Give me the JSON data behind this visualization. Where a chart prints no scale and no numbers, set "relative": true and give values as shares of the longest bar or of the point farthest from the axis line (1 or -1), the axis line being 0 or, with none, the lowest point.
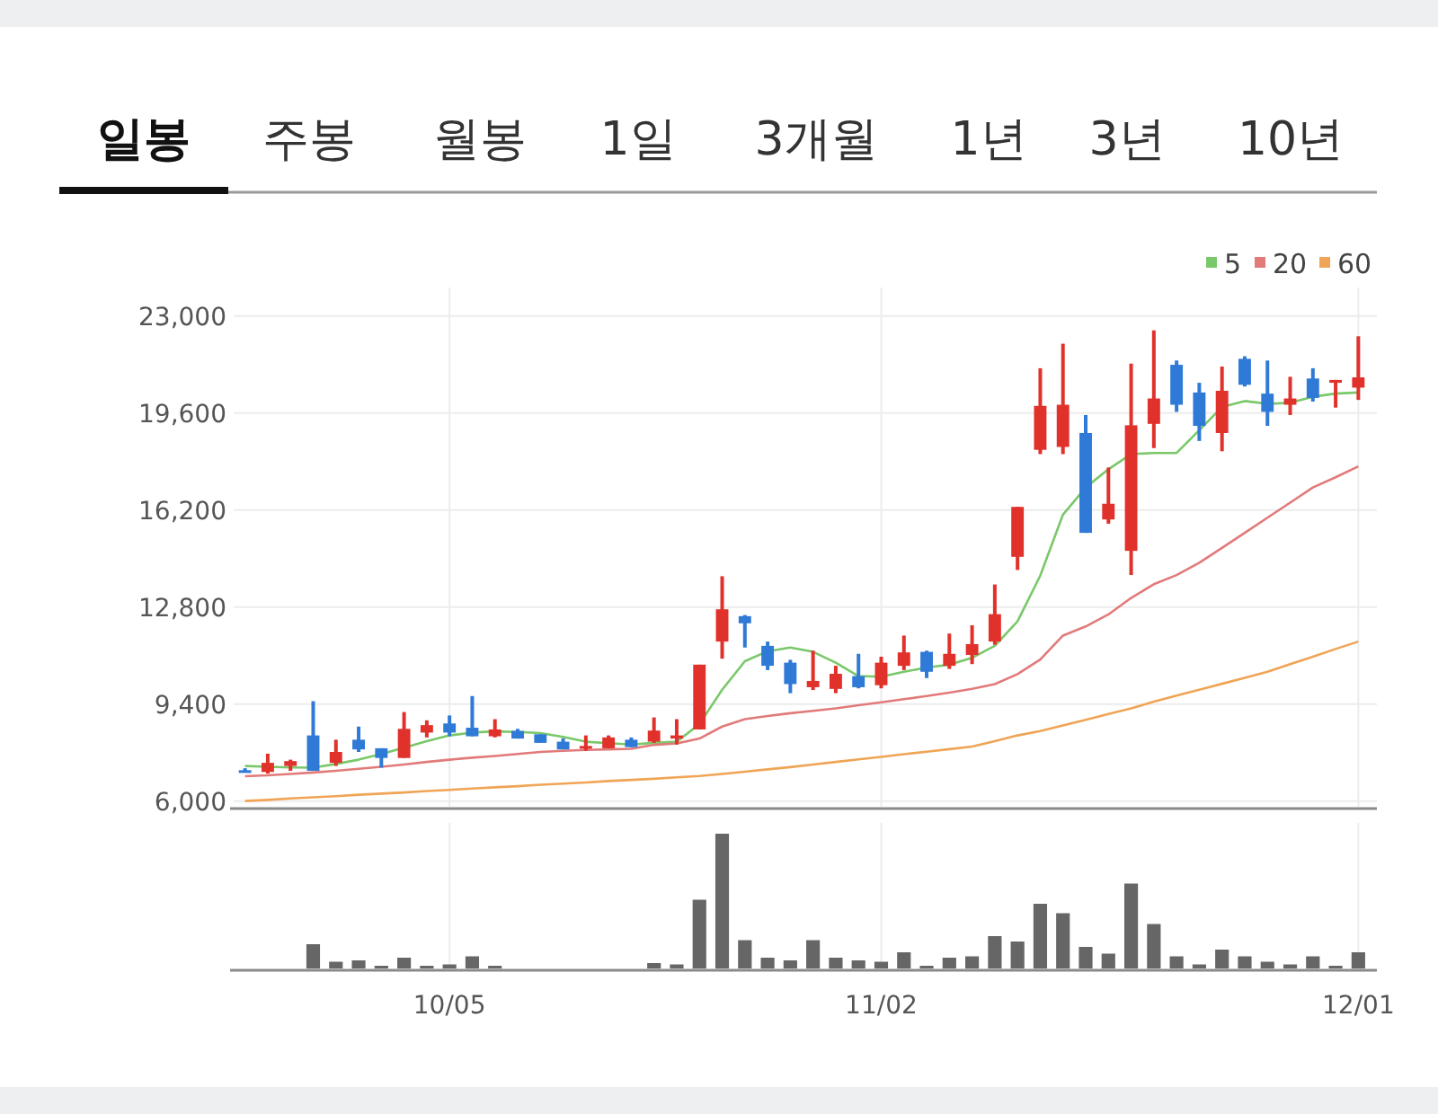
{
  "chart_data": [
    {
      "type": "candlestick",
      "annotations": [
        "일봉",
        "주봉",
        "월봉",
        "1일",
        "3개월",
        "1년",
        "3년",
        "10년"
      ],
      "categories": [
        null,
        null,
        null,
        null,
        null,
        null,
        null,
        null,
        null,
        null,
        null,
        null,
        null,
        null,
        null,
        null,
        null,
        null,
        null,
        null,
        null,
        null,
        null,
        null,
        null,
        null,
        null,
        null,
        null,
        null,
        null,
        null,
        null,
        null,
        null,
        null,
        null,
        null,
        null,
        null,
        null,
        null,
        null,
        null,
        null,
        null,
        null,
        null,
        null,
        null
      ],
      "ohlc": [
        [
          7080,
          7150,
          7000,
          7000
        ],
        [
          7020,
          7660,
          6960,
          7340
        ],
        [
          7230,
          7450,
          7060,
          7400
        ],
        [
          8300,
          9500,
          7060,
          7060
        ],
        [
          7340,
          8150,
          7230,
          7720
        ],
        [
          8150,
          8610,
          7720,
          7810
        ],
        [
          7850,
          7850,
          7170,
          7510
        ],
        [
          7510,
          9120,
          7510,
          8530
        ],
        [
          8400,
          8830,
          8230,
          8660
        ],
        [
          8720,
          9000,
          8270,
          8400
        ],
        [
          8570,
          9680,
          8270,
          8270
        ],
        [
          8270,
          8870,
          8230,
          8510
        ],
        [
          8460,
          8530,
          8190,
          8190
        ],
        [
          8340,
          8340,
          8040,
          8040
        ],
        [
          8080,
          8200,
          7810,
          7810
        ],
        [
          7850,
          8300,
          7760,
          7930
        ],
        [
          7850,
          8300,
          7850,
          8230
        ],
        [
          8150,
          8230,
          7890,
          7890
        ],
        [
          8080,
          8930,
          8040,
          8470
        ],
        [
          8190,
          8870,
          7980,
          8300
        ],
        [
          8510,
          10780,
          8510,
          10780
        ],
        [
          11590,
          13880,
          10990,
          12720
        ],
        [
          12480,
          12520,
          11380,
          12230
        ],
        [
          11440,
          11590,
          10590,
          10740
        ],
        [
          10850,
          10950,
          9780,
          10100
        ],
        [
          9990,
          11270,
          9890,
          10210
        ],
        [
          9930,
          10740,
          9780,
          10460
        ],
        [
          10380,
          11160,
          9950,
          9990
        ],
        [
          10060,
          11060,
          9950,
          10850
        ],
        [
          10740,
          11800,
          10590,
          11210
        ],
        [
          11230,
          11270,
          10310,
          10530
        ],
        [
          10740,
          11870,
          10630,
          11160
        ],
        [
          11120,
          12160,
          10800,
          11500
        ],
        [
          11590,
          13590,
          11480,
          12550
        ],
        [
          14560,
          16310,
          14100,
          16310
        ],
        [
          18310,
          21170,
          18160,
          19850
        ],
        [
          18410,
          22030,
          18160,
          19890
        ],
        [
          18900,
          19530,
          15400,
          15400
        ],
        [
          15870,
          17690,
          15720,
          16420
        ],
        [
          14770,
          21330,
          13920,
          19170
        ],
        [
          19220,
          22500,
          18370,
          20110
        ],
        [
          21290,
          21440,
          19640,
          19890
        ],
        [
          20320,
          20660,
          18620,
          19150
        ],
        [
          18900,
          21230,
          18260,
          20380
        ],
        [
          21500,
          21590,
          20530,
          20590
        ],
        [
          20280,
          21440,
          19150,
          19640
        ],
        [
          19890,
          20870,
          19530,
          20110
        ],
        [
          20810,
          21170,
          20000,
          20130
        ],
        [
          20660,
          20760,
          19790,
          20760
        ],
        [
          20490,
          22290,
          20060,
          20850
        ]
      ],
      "colors": [
        "#2f7ad6",
        "#e0312b",
        "#e0312b",
        "#2f7ad6",
        "#e0312b",
        "#2f7ad6",
        "#2f7ad6",
        "#e0312b",
        "#e0312b",
        "#2f7ad6",
        "#2f7ad6",
        "#e0312b",
        "#2f7ad6",
        "#2f7ad6",
        "#2f7ad6",
        "#e0312b",
        "#e0312b",
        "#2f7ad6",
        "#e0312b",
        "#e0312b",
        "#e0312b",
        "#e0312b",
        "#2f7ad6",
        "#2f7ad6",
        "#2f7ad6",
        "#e0312b",
        "#e0312b",
        "#2f7ad6",
        "#e0312b",
        "#e0312b",
        "#2f7ad6",
        "#e0312b",
        "#e0312b",
        "#e0312b",
        "#e0312b",
        "#e0312b",
        "#e0312b",
        "#2f7ad6",
        "#e0312b",
        "#e0312b",
        "#e0312b",
        "#2f7ad6",
        "#2f7ad6",
        "#e0312b",
        "#2f7ad6",
        "#2f7ad6",
        "#e0312b",
        "#2f7ad6",
        "#e0312b",
        "#e0312b"
      ],
      "series": [
        {
          "name": "5",
          "type": "line",
          "color": "#79c86a",
          "values": [
            7230,
            7200,
            7180,
            7170,
            7300,
            7450,
            7650,
            7870,
            8100,
            8300,
            8400,
            8440,
            8420,
            8380,
            8250,
            8080,
            8030,
            7980,
            8040,
            8080,
            8700,
            9900,
            10900,
            11250,
            11380,
            11230,
            10850,
            10380,
            10360,
            10530,
            10680,
            10780,
            11020,
            11440,
            12300,
            13900,
            16040,
            16990,
            17630,
            18160,
            18200,
            18200,
            19000,
            19810,
            20020,
            19920,
            19960,
            20170,
            20280,
            20320
          ]
        },
        {
          "name": "20",
          "type": "line",
          "color": "#e27a7a",
          "values": [
            6870,
            6900,
            6950,
            7000,
            7060,
            7130,
            7200,
            7280,
            7370,
            7450,
            7520,
            7580,
            7650,
            7720,
            7760,
            7790,
            7810,
            7830,
            7970,
            8020,
            8190,
            8610,
            8870,
            8980,
            9080,
            9160,
            9250,
            9360,
            9460,
            9570,
            9680,
            9800,
            9930,
            10100,
            10450,
            10960,
            11800,
            12120,
            12540,
            13120,
            13600,
            13920,
            14350,
            14870,
            15400,
            15930,
            16460,
            16990,
            17350,
            17730
          ]
        },
        {
          "name": "60",
          "type": "line",
          "color": "#f0a455",
          "values": [
            6000,
            6040,
            6090,
            6130,
            6170,
            6220,
            6260,
            6300,
            6350,
            6390,
            6440,
            6480,
            6520,
            6570,
            6610,
            6650,
            6700,
            6740,
            6780,
            6830,
            6880,
            6950,
            7030,
            7110,
            7190,
            7280,
            7370,
            7460,
            7550,
            7640,
            7730,
            7820,
            7910,
            8100,
            8300,
            8450,
            8650,
            8850,
            9050,
            9250,
            9480,
            9700,
            9900,
            10110,
            10320,
            10530,
            10800,
            11060,
            11330,
            11590
          ]
        }
      ],
      "ylim": [
        5800,
        24000
      ],
      "yticks": [
        {
          "value": 6000,
          "label": "6,000"
        },
        {
          "value": 9400,
          "label": "9,400"
        },
        {
          "value": 12800,
          "label": "12,800"
        },
        {
          "value": 16200,
          "label": "16,200"
        },
        {
          "value": 19600,
          "label": "19,600"
        },
        {
          "value": 23000,
          "label": "23,000"
        }
      ],
      "grid": true,
      "legend": "top right",
      "tick_labels": "y"
    },
    {
      "type": "bar",
      "categories": [
        null,
        null,
        null,
        null,
        null,
        null,
        null,
        null,
        null,
        "10/05",
        null,
        null,
        null,
        null,
        null,
        null,
        null,
        null,
        null,
        null,
        null,
        null,
        null,
        null,
        null,
        null,
        null,
        null,
        "11/02",
        null,
        null,
        null,
        null,
        null,
        null,
        null,
        null,
        null,
        null,
        null,
        null,
        null,
        null,
        null,
        null,
        null,
        null,
        null,
        null,
        "12/01"
      ],
      "values": [
        0,
        0,
        0,
        0.18,
        0.05,
        0.06,
        0.02,
        0.08,
        0.02,
        0.03,
        0.09,
        0.02,
        0,
        0,
        0,
        0,
        0,
        0,
        0.04,
        0.03,
        0.51,
        1,
        0.21,
        0.08,
        0.06,
        0.21,
        0.08,
        0.06,
        0.05,
        0.12,
        0.02,
        0.08,
        0.09,
        0.24,
        0.2,
        0.48,
        0.41,
        0.16,
        0.11,
        0.63,
        0.33,
        0.09,
        0.03,
        0.14,
        0.09,
        0.05,
        0.03,
        0.09,
        0.02,
        0.12
      ],
      "color": "#666666",
      "relative": true,
      "grid": "x",
      "tick_labels": "x"
    }
  ]
}
